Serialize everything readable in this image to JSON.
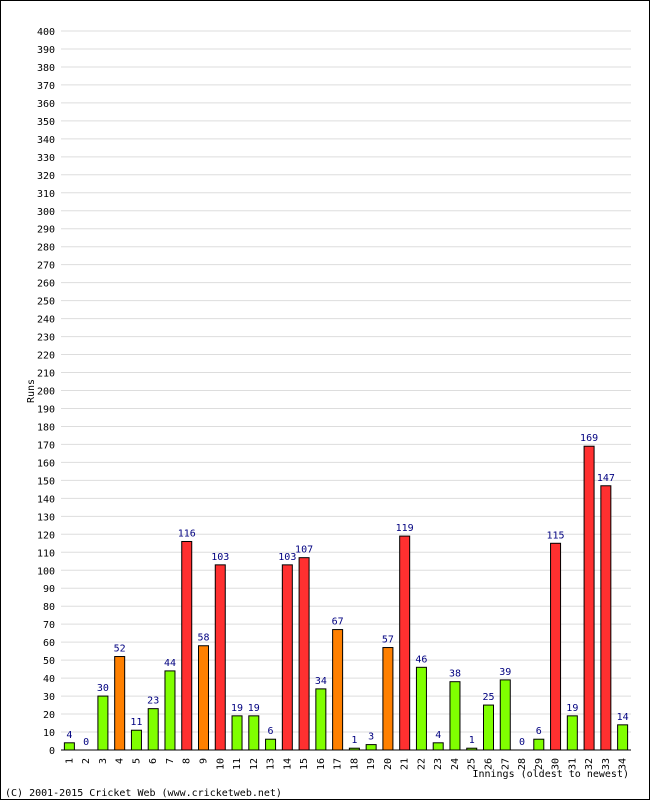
{
  "chart_data": {
    "type": "bar",
    "title": "",
    "xlabel": "Innings (oldest to newest)",
    "ylabel": "Runs",
    "ylim": [
      0,
      400
    ],
    "ytick_step": 10,
    "grid": true,
    "categories": [
      "1",
      "2",
      "3",
      "4",
      "5",
      "6",
      "7",
      "8",
      "9",
      "10",
      "11",
      "12",
      "13",
      "14",
      "15",
      "16",
      "17",
      "18",
      "19",
      "20",
      "21",
      "22",
      "23",
      "24",
      "25",
      "26",
      "27",
      "28",
      "29",
      "30",
      "31",
      "32",
      "33",
      "34"
    ],
    "values": [
      4,
      0,
      30,
      52,
      11,
      23,
      44,
      116,
      58,
      103,
      19,
      19,
      6,
      103,
      107,
      34,
      67,
      1,
      3,
      57,
      119,
      46,
      4,
      38,
      1,
      25,
      39,
      0,
      6,
      115,
      19,
      169,
      147,
      14
    ],
    "colors": {
      "under_50": "#80ff00",
      "50_to_99": "#ff8000",
      "100_plus": "#ff3030",
      "label": "#000080",
      "grid": "#dddddd"
    }
  },
  "footer": {
    "copyright": "(C) 2001-2015 Cricket Web (www.cricketweb.net)"
  }
}
